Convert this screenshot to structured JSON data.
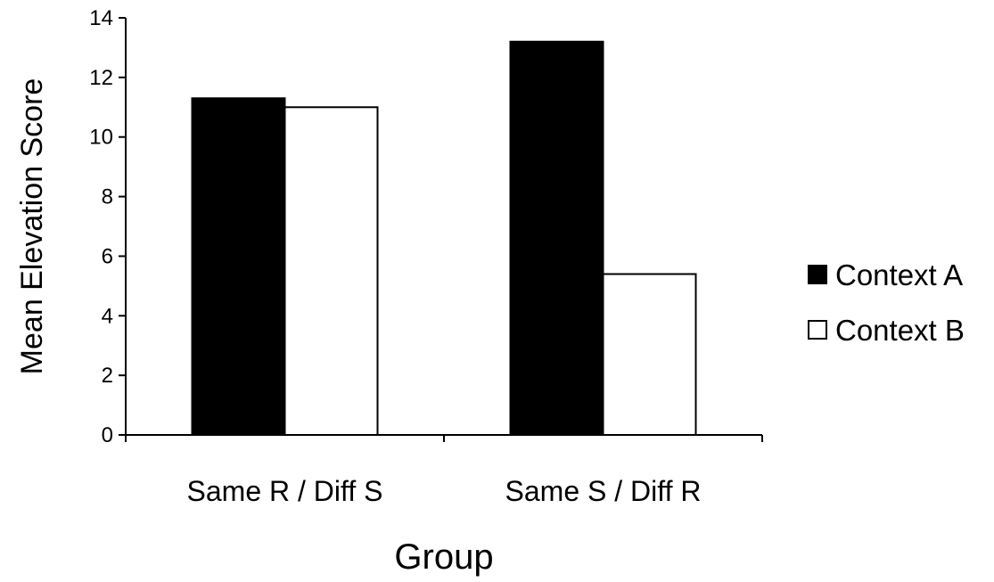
{
  "chart_data": {
    "type": "bar",
    "title": "",
    "xlabel": "Group",
    "ylabel": "Mean Elevation Score",
    "categories": [
      "Same R / Diff S",
      "Same S / Diff R"
    ],
    "series": [
      {
        "name": "Context A",
        "values": [
          11.3,
          13.2
        ],
        "color": "#000000"
      },
      {
        "name": "Context B",
        "values": [
          11.0,
          5.4
        ],
        "color": "#ffffff"
      }
    ],
    "ylim": [
      0,
      14
    ],
    "yticks": [
      "0",
      "2",
      "4",
      "6",
      "8",
      "10",
      "12",
      "14"
    ],
    "grid": false,
    "legend_position": "right"
  }
}
